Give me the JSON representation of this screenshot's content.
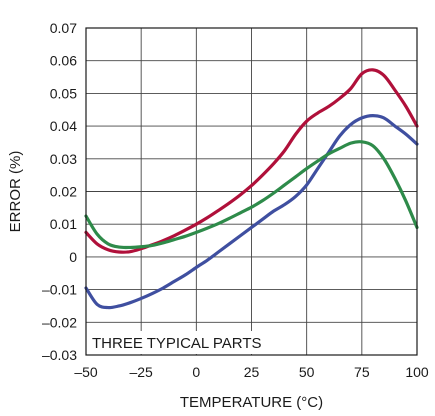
{
  "chart_data": {
    "type": "line",
    "title": "",
    "xlabel": "TEMPERATURE (°C)",
    "ylabel": "ERROR (%)",
    "annotation": "THREE TYPICAL PARTS",
    "xlim": [
      -50,
      100
    ],
    "ylim": [
      -0.03,
      0.07
    ],
    "x_ticks": [
      -50,
      -25,
      0,
      25,
      50,
      75,
      100
    ],
    "x_tick_labels": [
      "–50",
      "–25",
      "0",
      "25",
      "50",
      "75",
      "100"
    ],
    "y_ticks": [
      -0.03,
      -0.02,
      -0.01,
      0,
      0.01,
      0.02,
      0.03,
      0.04,
      0.05,
      0.06,
      0.07
    ],
    "y_tick_labels": [
      "–0.03",
      "–0.02",
      "–0.01",
      "0",
      "0.01",
      "0.02",
      "0.03",
      "0.04",
      "0.05",
      "0.06",
      "0.07"
    ],
    "grid": true,
    "series": [
      {
        "color": "#b0103a",
        "x": [
          -50,
          -45,
          -40,
          -35,
          -30,
          -25,
          -20,
          -15,
          -10,
          -5,
          0,
          5,
          10,
          15,
          20,
          25,
          30,
          35,
          40,
          45,
          50,
          55,
          60,
          65,
          70,
          75,
          80,
          85,
          90,
          95,
          100
        ],
        "y": [
          0.0075,
          0.004,
          0.0022,
          0.0015,
          0.0016,
          0.0025,
          0.0037,
          0.005,
          0.0065,
          0.0082,
          0.01,
          0.012,
          0.0142,
          0.0165,
          0.019,
          0.0218,
          0.025,
          0.0285,
          0.0325,
          0.0375,
          0.0415,
          0.044,
          0.046,
          0.0485,
          0.0515,
          0.056,
          0.0572,
          0.0555,
          0.051,
          0.046,
          0.04
        ]
      },
      {
        "color": "#3f4fa0",
        "x": [
          -50,
          -45,
          -40,
          -35,
          -30,
          -25,
          -20,
          -15,
          -10,
          -5,
          0,
          5,
          10,
          15,
          20,
          25,
          30,
          35,
          40,
          45,
          50,
          55,
          60,
          65,
          70,
          75,
          80,
          85,
          90,
          95,
          100
        ],
        "y": [
          -0.0095,
          -0.0145,
          -0.0155,
          -0.015,
          -0.014,
          -0.0127,
          -0.0112,
          -0.0095,
          -0.0075,
          -0.0055,
          -0.0032,
          -0.001,
          0.0015,
          0.004,
          0.0065,
          0.009,
          0.0115,
          0.014,
          0.016,
          0.0185,
          0.022,
          0.027,
          0.032,
          0.037,
          0.0405,
          0.0425,
          0.0432,
          0.0425,
          0.04,
          0.0375,
          0.0345
        ]
      },
      {
        "color": "#2e8b4a",
        "x": [
          -50,
          -45,
          -40,
          -35,
          -30,
          -25,
          -20,
          -15,
          -10,
          -5,
          0,
          5,
          10,
          15,
          20,
          25,
          30,
          35,
          40,
          45,
          50,
          55,
          60,
          65,
          70,
          75,
          80,
          85,
          90,
          95,
          100
        ],
        "y": [
          0.0125,
          0.007,
          0.004,
          0.003,
          0.0029,
          0.0031,
          0.0035,
          0.0043,
          0.0053,
          0.0063,
          0.0075,
          0.0088,
          0.0102,
          0.0118,
          0.0135,
          0.0152,
          0.0172,
          0.0195,
          0.022,
          0.0245,
          0.027,
          0.0293,
          0.0315,
          0.0332,
          0.0348,
          0.0352,
          0.034,
          0.03,
          0.024,
          0.017,
          0.009
        ]
      }
    ]
  }
}
